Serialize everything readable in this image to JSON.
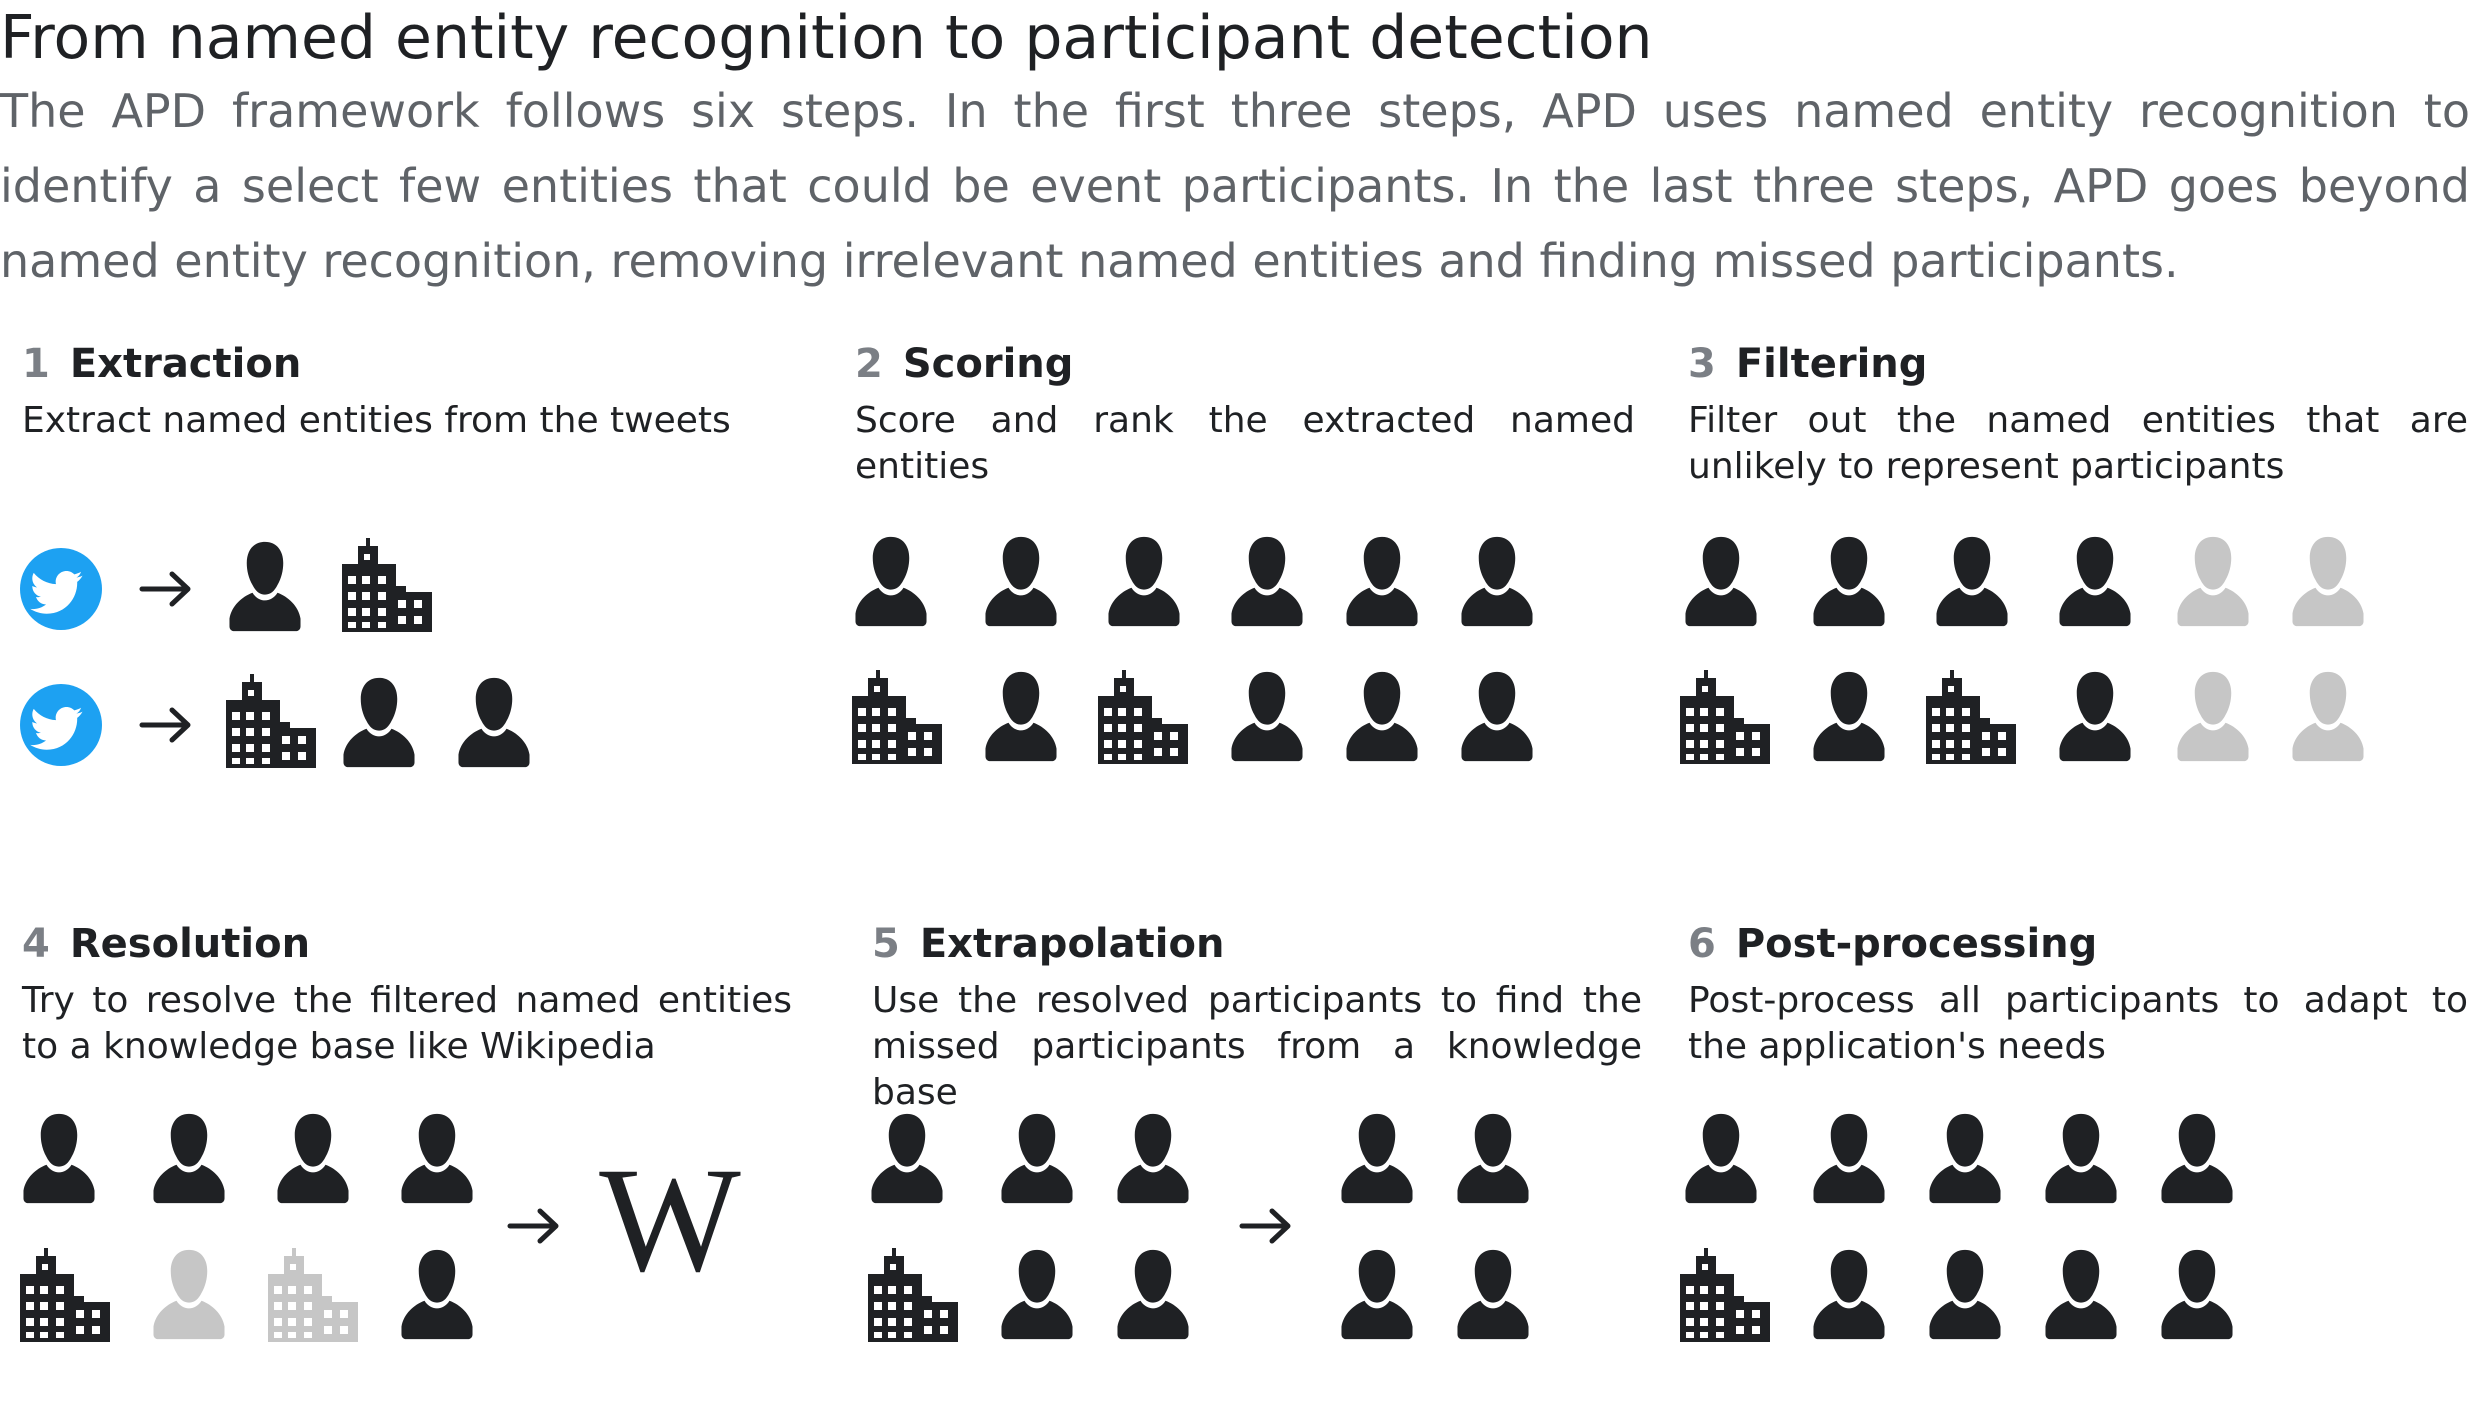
{
  "title": "From named entity recognition to participant detection",
  "intro": "The APD framework follows six steps. In the first three steps, APD uses named entity recognition to identify a select few entities that could be event participants. In the last three steps, APD goes beyond named entity recognition, removing irrelevant named entities and finding missed participants.",
  "steps": [
    {
      "number": "1",
      "name": "Extraction",
      "description": "Extract named entities from the tweets"
    },
    {
      "number": "2",
      "name": "Scoring",
      "description": "Score and rank the extracted named entities"
    },
    {
      "number": "3",
      "name": "Filtering",
      "description": "Filter out the named entities that are unlikely to represent participants"
    },
    {
      "number": "4",
      "name": "Resolution",
      "description": "Try to resolve the filtered named entities to a knowledge base like Wikipedia"
    },
    {
      "number": "5",
      "name": "Extrapolation",
      "description": "Use the resolved participants to find the missed participants from a knowledge base"
    },
    {
      "number": "6",
      "name": "Post-processing",
      "description": "Post-process all participants to adapt to the application's needs"
    }
  ],
  "colors": {
    "entity_dark": "#1f2124",
    "entity_faded": "#c6c6c6",
    "twitter_blue": "#1da1f2",
    "step_number": "#7b7f85",
    "intro_text": "#5f6368"
  },
  "icons": [
    "person-icon",
    "building-icon",
    "twitter-icon",
    "arrow-right-icon",
    "wikipedia-icon"
  ]
}
